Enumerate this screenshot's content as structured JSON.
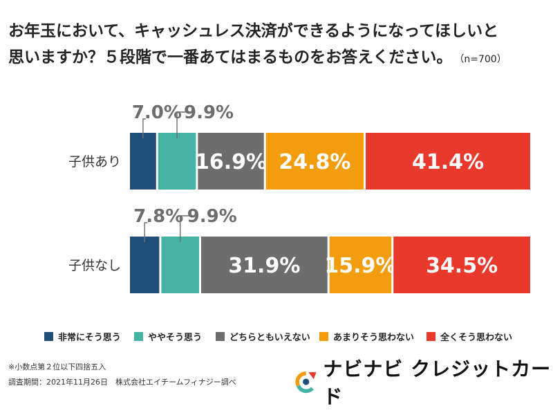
{
  "title": {
    "line1": "お年玉において、キャッシュレス決済ができるようになってほしいと",
    "line2": "思いますか？５段階で一番あてはまるものをお答えください。",
    "sample": "（n=700）"
  },
  "chart_data": {
    "type": "bar",
    "orientation": "horizontal",
    "stacked": true,
    "unit": "%",
    "categories": [
      "子供あり",
      "子供なし"
    ],
    "series": [
      {
        "name": "非常にそう思う",
        "color": "#1f4e79",
        "values": [
          7.0,
          7.8
        ]
      },
      {
        "name": "ややそう思う",
        "color": "#45b3a4",
        "values": [
          9.9,
          9.9
        ]
      },
      {
        "name": "どちらともいえない",
        "color": "#6d6d6d",
        "values": [
          16.9,
          31.9
        ]
      },
      {
        "name": "あまりそう思わない",
        "color": "#f39c0d",
        "values": [
          24.8,
          15.9
        ]
      },
      {
        "name": "全くそう思わない",
        "color": "#e8392c",
        "values": [
          41.4,
          34.5
        ]
      }
    ],
    "labels": [
      [
        "7.0%",
        "9.9%",
        "16.9%",
        "24.8%",
        "41.4%"
      ],
      [
        "7.8%",
        "9.9%",
        "31.9%",
        "15.9%",
        "34.5%"
      ]
    ],
    "legend_position": "bottom"
  },
  "notes": {
    "line1": "※小数点第２位以下四捨五入",
    "line2": "調査期間：2021年11月26日　株式会社エイチームフィナジー調べ"
  },
  "brand": {
    "name": "ナビナビ クレジットカード",
    "logo_colors": [
      "#f39c0d",
      "#e8392c",
      "#45b3a4",
      "#1f4e79"
    ]
  }
}
